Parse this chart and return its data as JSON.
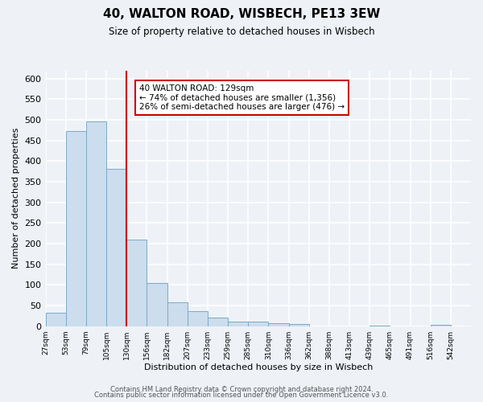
{
  "title": "40, WALTON ROAD, WISBECH, PE13 3EW",
  "subtitle": "Size of property relative to detached houses in Wisbech",
  "xlabel": "Distribution of detached houses by size in Wisbech",
  "ylabel": "Number of detached properties",
  "bar_color": "#ccdded",
  "bar_edge_color": "#7aaac8",
  "bg_color": "#eef2f7",
  "grid_color": "#ffffff",
  "bin_labels": [
    "27sqm",
    "53sqm",
    "79sqm",
    "105sqm",
    "130sqm",
    "156sqm",
    "182sqm",
    "207sqm",
    "233sqm",
    "259sqm",
    "285sqm",
    "310sqm",
    "336sqm",
    "362sqm",
    "388sqm",
    "413sqm",
    "439sqm",
    "465sqm",
    "491sqm",
    "516sqm",
    "542sqm"
  ],
  "bin_edges": [
    0,
    1,
    2,
    3,
    4,
    5,
    6,
    7,
    8,
    9,
    10,
    11,
    12,
    13,
    14,
    15,
    16,
    17,
    18,
    19,
    20,
    21
  ],
  "bar_values": [
    32,
    473,
    497,
    382,
    210,
    105,
    57,
    36,
    20,
    11,
    11,
    8,
    5,
    0,
    0,
    0,
    1,
    0,
    0,
    3,
    0
  ],
  "vline_x": 4,
  "vline_color": "#cc0000",
  "annotation_text": "40 WALTON ROAD: 129sqm\n← 74% of detached houses are smaller (1,356)\n26% of semi-detached houses are larger (476) →",
  "annotation_box_color": "#ffffff",
  "annotation_box_edge": "#cc0000",
  "ylim": [
    0,
    620
  ],
  "yticks": [
    0,
    50,
    100,
    150,
    200,
    250,
    300,
    350,
    400,
    450,
    500,
    550,
    600
  ],
  "footer_line1": "Contains HM Land Registry data © Crown copyright and database right 2024.",
  "footer_line2": "Contains public sector information licensed under the Open Government Licence v3.0."
}
